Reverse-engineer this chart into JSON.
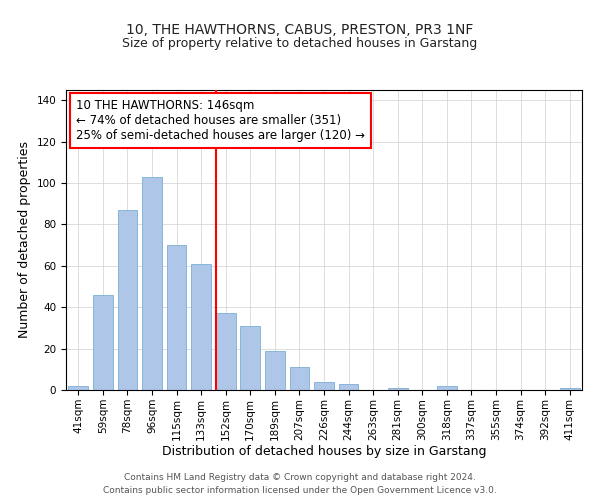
{
  "title": "10, THE HAWTHORNS, CABUS, PRESTON, PR3 1NF",
  "subtitle": "Size of property relative to detached houses in Garstang",
  "xlabel": "Distribution of detached houses by size in Garstang",
  "ylabel": "Number of detached properties",
  "bar_labels": [
    "41sqm",
    "59sqm",
    "78sqm",
    "96sqm",
    "115sqm",
    "133sqm",
    "152sqm",
    "170sqm",
    "189sqm",
    "207sqm",
    "226sqm",
    "244sqm",
    "263sqm",
    "281sqm",
    "300sqm",
    "318sqm",
    "337sqm",
    "355sqm",
    "374sqm",
    "392sqm",
    "411sqm"
  ],
  "bar_values": [
    2,
    46,
    87,
    103,
    70,
    61,
    37,
    31,
    19,
    11,
    4,
    3,
    0,
    1,
    0,
    2,
    0,
    0,
    0,
    0,
    1
  ],
  "bar_color": "#aec6e8",
  "bar_edge_color": "#7bafd4",
  "vline_x_index": 6,
  "vline_color": "red",
  "ylim": [
    0,
    145
  ],
  "yticks": [
    0,
    20,
    40,
    60,
    80,
    100,
    120,
    140
  ],
  "annotation_title": "10 THE HAWTHORNS: 146sqm",
  "annotation_line1": "← 74% of detached houses are smaller (351)",
  "annotation_line2": "25% of semi-detached houses are larger (120) →",
  "annotation_box_color": "#ffffff",
  "annotation_box_edge": "red",
  "footer_line1": "Contains HM Land Registry data © Crown copyright and database right 2024.",
  "footer_line2": "Contains public sector information licensed under the Open Government Licence v3.0.",
  "title_fontsize": 10,
  "subtitle_fontsize": 9,
  "axis_label_fontsize": 9,
  "tick_fontsize": 7.5,
  "annotation_fontsize": 8.5,
  "footer_fontsize": 6.5
}
